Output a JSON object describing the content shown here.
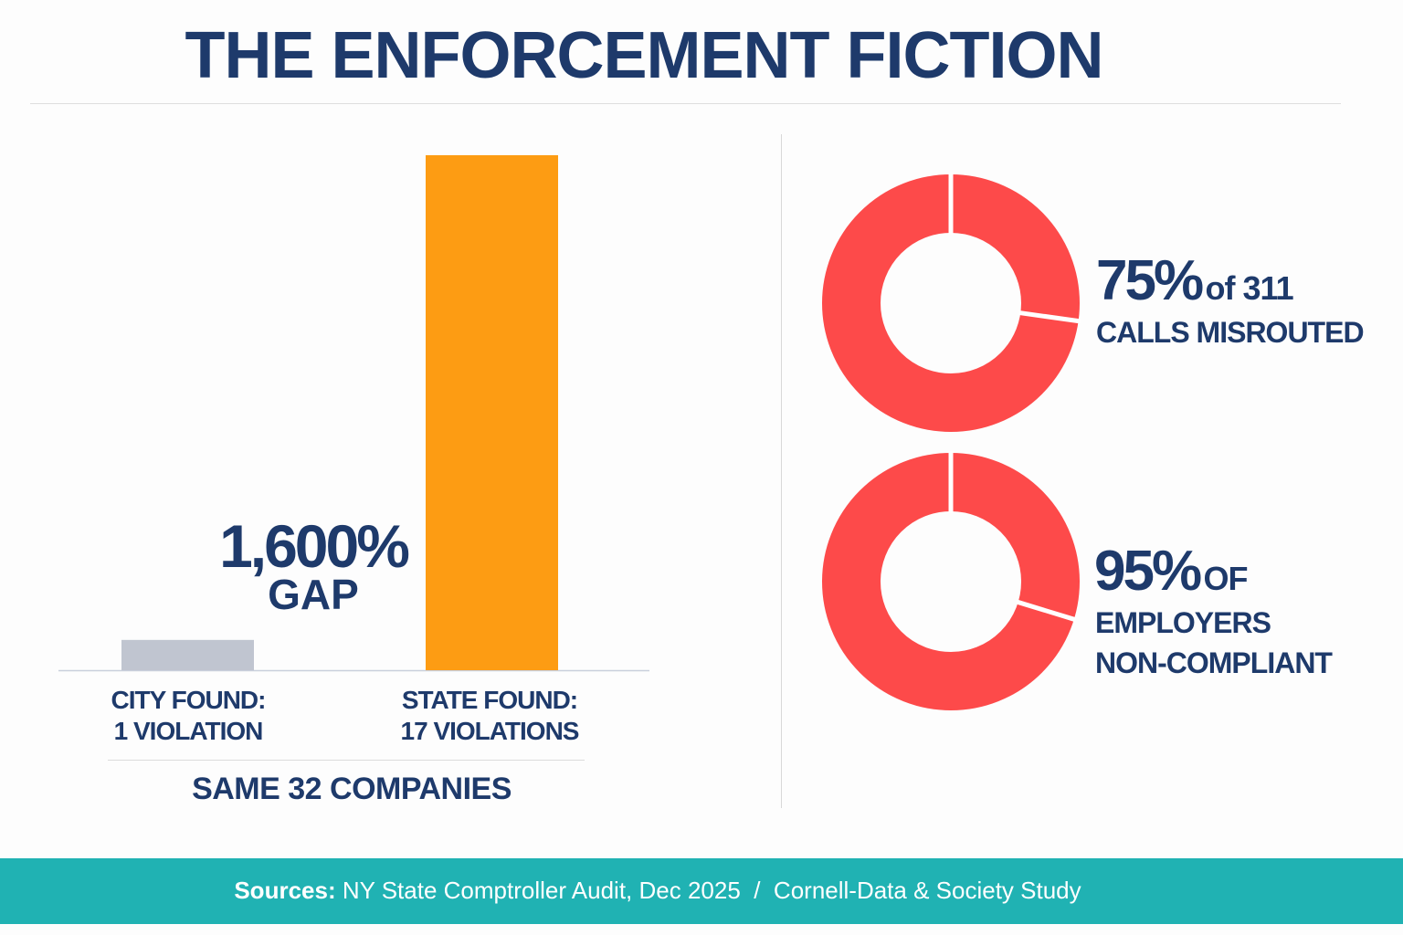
{
  "title": "THE ENFORCEMENT FICTION",
  "chart_data": [
    {
      "type": "bar",
      "categories": [
        "CITY FOUND:",
        "STATE FOUND:"
      ],
      "category_sublabels": [
        "1 VIOLATION",
        "17 VIOLATIONS"
      ],
      "values": [
        1,
        17
      ],
      "colors": [
        "#c0c5d0",
        "#fd9c13"
      ],
      "annotation": {
        "value": "1,600%",
        "label": "GAP"
      },
      "footer_label": "SAME 32 COMPANIES",
      "grid": false
    },
    {
      "type": "pie",
      "variant": "donut",
      "value": 75,
      "color": "#fd4a4a",
      "value_label": "75%",
      "label_suffix": "of 311",
      "label_line": "CALLS MISROUTED"
    },
    {
      "type": "pie",
      "variant": "donut",
      "value": 95,
      "color": "#fd4a4a",
      "value_label": "95%",
      "label_suffix": "OF",
      "label_lines": [
        "EMPLOYERS",
        "NON-COMPLIANT"
      ]
    }
  ],
  "colors": {
    "title": "#1e3a6b",
    "footer": "#20b2b3"
  },
  "footer": {
    "sources_label": "Sources:",
    "text": " NY State Comptroller Audit, Dec 2025  /  Cornell-Data & Society Study"
  }
}
